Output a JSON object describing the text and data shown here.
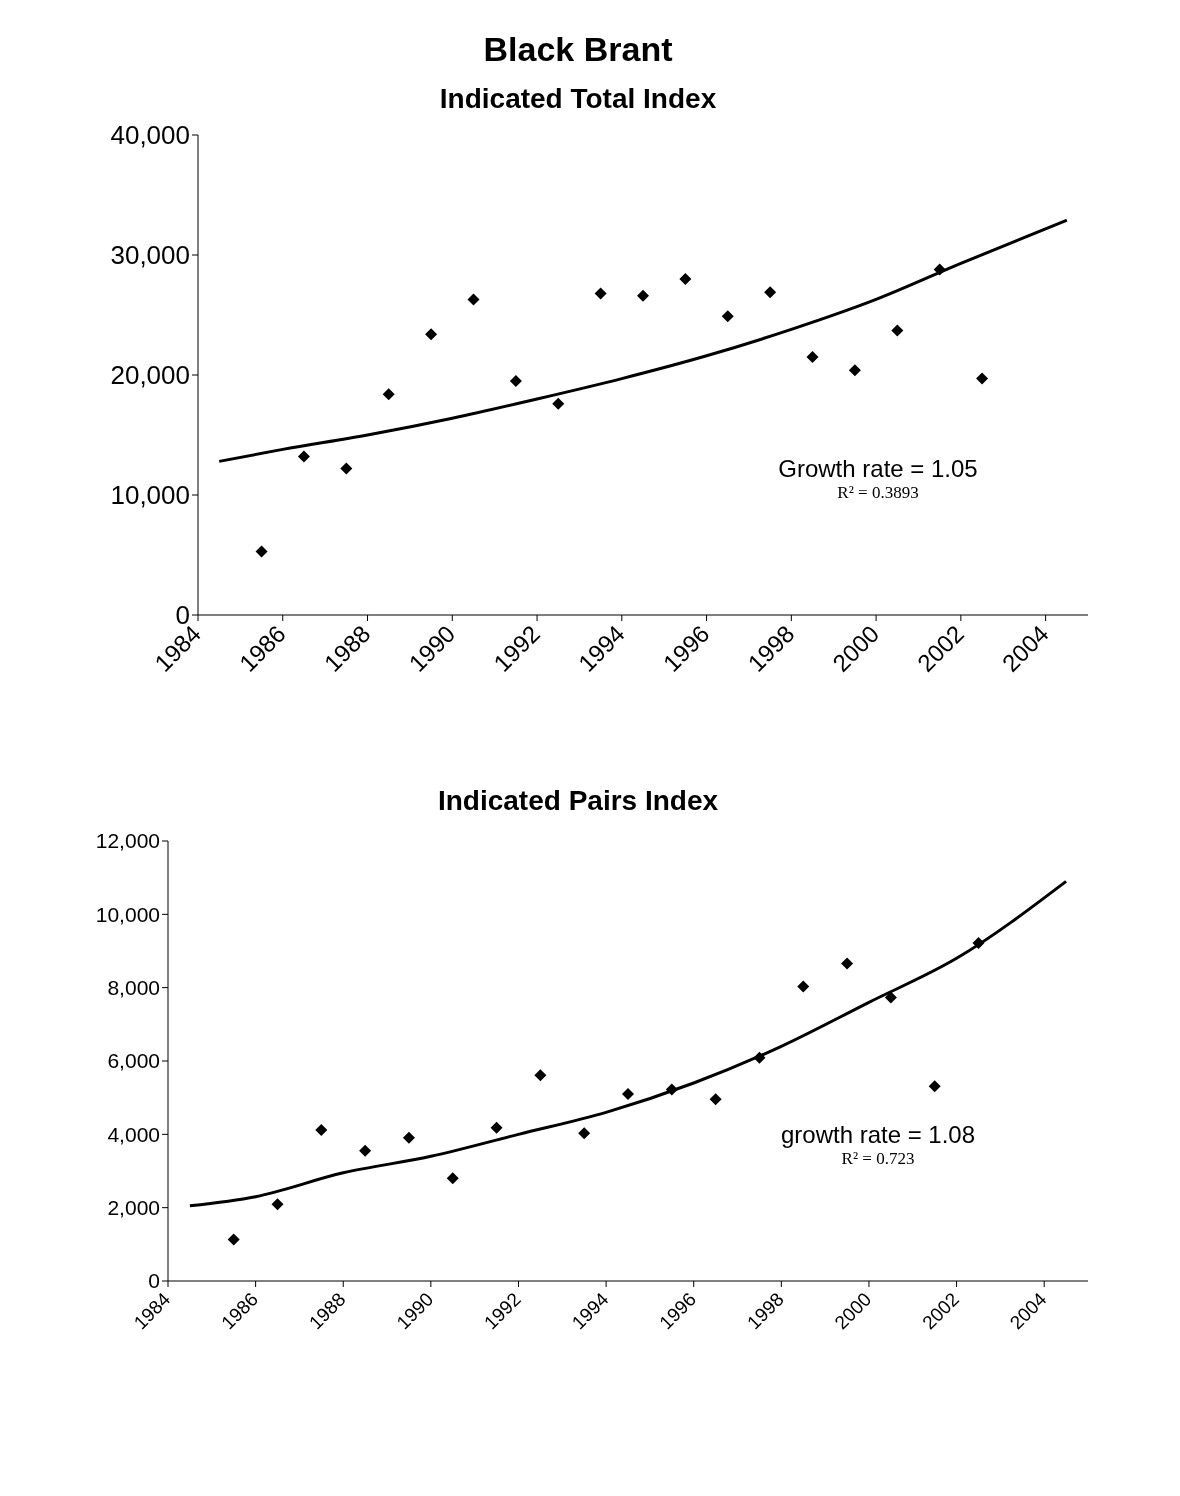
{
  "chart_data": [
    {
      "type": "scatter",
      "title": "Black Brant",
      "subtitle": "Indicated Total Index",
      "x": [
        1985.5,
        1986.5,
        1987.5,
        1988.5,
        1989.5,
        1990.5,
        1991.5,
        1992.5,
        1993.5,
        1994.5,
        1995.5,
        1996.5,
        1997.5,
        1998.5,
        1999.5,
        2000.5,
        2001.5,
        2002.5
      ],
      "series": [
        {
          "color": "#000000",
          "values": [
            5300,
            13200,
            12200,
            18400,
            23400,
            26300,
            19500,
            17600,
            26800,
            26600,
            28000,
            24900,
            26900,
            21500,
            20400,
            23700,
            28800,
            19700
          ]
        },
        {
          "type": "line",
          "marker": "none",
          "color": "#000000",
          "x": [
            1984.5,
            1986,
            1988,
            1990,
            1992,
            1994,
            1996,
            1998,
            2000,
            2002,
            2004.5
          ],
          "values": [
            12800,
            13800,
            15000,
            16400,
            18000,
            19700,
            21600,
            23800,
            26300,
            29300,
            32900
          ]
        }
      ],
      "xlim": [
        1984,
        2005
      ],
      "xticks": [
        1984,
        1986,
        1988,
        1990,
        1992,
        1994,
        1996,
        1998,
        2000,
        2002,
        2004
      ],
      "ylim": [
        0,
        40000
      ],
      "yticks": [
        0,
        {
          "value": 10000,
          "label": "10,000"
        },
        {
          "value": 20000,
          "label": "20,000"
        },
        {
          "value": 30000,
          "label": "30,000"
        },
        {
          "value": 40000,
          "label": "40,000"
        }
      ],
      "marker": "diamond",
      "grid": false,
      "legend": false,
      "annotations": [
        "Growth rate = 1.05",
        "R² = 0.3893"
      ]
    },
    {
      "type": "scatter",
      "title": "Indicated Pairs Index",
      "x": [
        1985.5,
        1986.5,
        1987.5,
        1988.5,
        1989.5,
        1990.5,
        1991.5,
        1992.5,
        1993.5,
        1994.5,
        1995.5,
        1996.5,
        1997.5,
        1998.5,
        1999.5,
        2000.5,
        2001.5,
        2002.5
      ],
      "series": [
        {
          "color": "#000000",
          "values": [
            1130,
            2090,
            4120,
            3550,
            3910,
            2800,
            4180,
            5610,
            4030,
            5100,
            5220,
            4960,
            6090,
            8030,
            8660,
            7730,
            5310,
            9220
          ]
        },
        {
          "type": "line",
          "marker": "none",
          "color": "#000000",
          "x": [
            1984.5,
            1986,
            1988,
            1990,
            1992,
            1994,
            1996,
            1998,
            2000,
            2002,
            2004.5
          ],
          "values": [
            2050,
            2300,
            2950,
            3400,
            4000,
            4600,
            5400,
            6400,
            7600,
            8800,
            10900
          ]
        }
      ],
      "xlim": [
        1984,
        2005
      ],
      "xticks": [
        1984,
        1986,
        1988,
        1990,
        1992,
        1994,
        1996,
        1998,
        2000,
        2002,
        2004
      ],
      "ylim": [
        0,
        12000
      ],
      "yticks": [
        0,
        {
          "value": 2000,
          "label": "2,000"
        },
        {
          "value": 4000,
          "label": "4,000"
        },
        {
          "value": 6000,
          "label": "6,000"
        },
        {
          "value": 8000,
          "label": "8,000"
        },
        {
          "value": 10000,
          "label": "10,000"
        },
        {
          "value": 12000,
          "label": "12,000"
        }
      ],
      "marker": "diamond",
      "grid": false,
      "legend": false,
      "annotations": [
        "growth rate = 1.08",
        "R² = 0.723"
      ]
    }
  ]
}
